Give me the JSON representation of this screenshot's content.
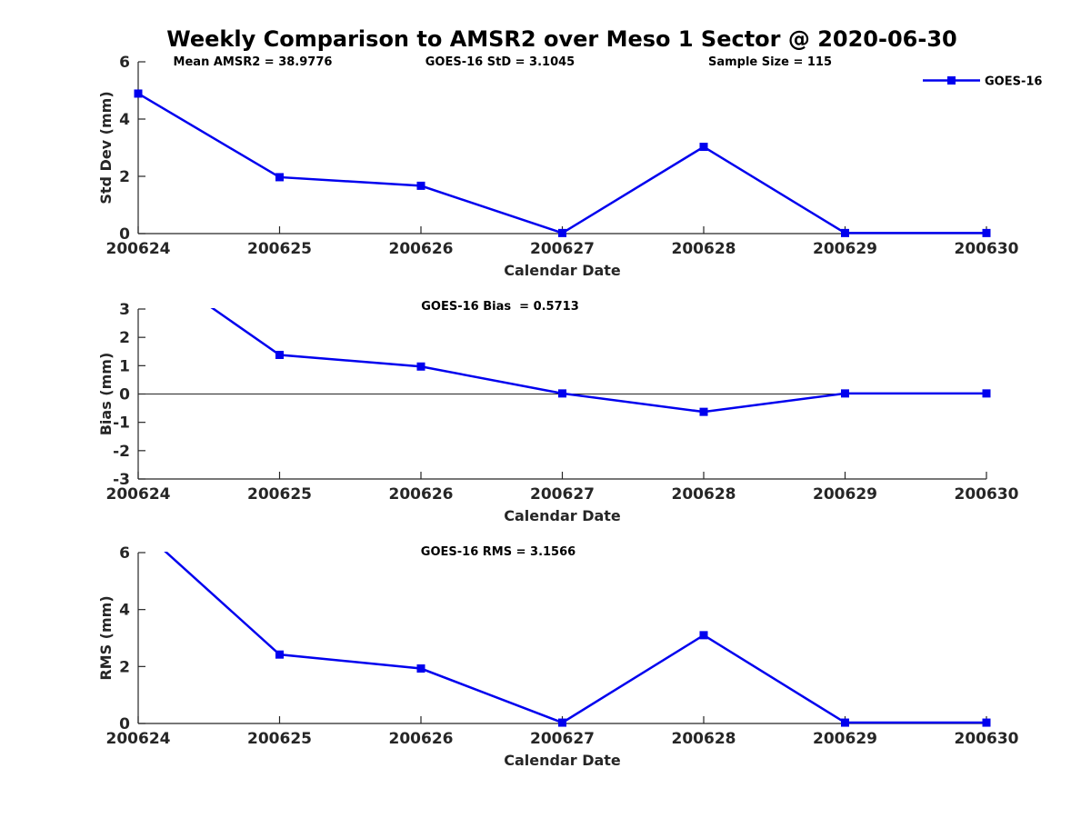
{
  "title": "Weekly Comparison to AMSR2 over Meso 1 Sector @ 2020-06-30",
  "legend": {
    "label": "GOES-16"
  },
  "colors": {
    "line": "#0000EE",
    "axis": "#262626",
    "text": "#000000",
    "background": "#FFFFFF"
  },
  "chart_data": [
    {
      "type": "line",
      "ylabel": "Std Dev (mm)",
      "xlabel": "Calendar Date",
      "categories": [
        "200624",
        "200625",
        "200626",
        "200627",
        "200628",
        "200629",
        "200630"
      ],
      "series": [
        {
          "name": "GOES-16",
          "values": [
            4.89,
            1.97,
            1.67,
            0.02,
            3.03,
            0.02,
            0.02
          ]
        }
      ],
      "ylim": [
        0,
        6
      ],
      "yticks": [
        0,
        2,
        4,
        6
      ],
      "zero_line": false,
      "grid": false,
      "legend_position": "top-right",
      "annotations": [
        "Mean AMSR2 = 38.9776",
        "GOES-16 StD = 3.1045",
        "Sample Size = 115"
      ]
    },
    {
      "type": "line",
      "ylabel": "Bias (mm)",
      "xlabel": "Calendar Date",
      "categories": [
        "200624",
        "200625",
        "200626",
        "200627",
        "200628",
        "200629",
        "200630"
      ],
      "series": [
        {
          "name": "GOES-16",
          "values": [
            4.86,
            1.38,
            0.97,
            0.02,
            -0.63,
            0.02,
            0.02
          ]
        }
      ],
      "ylim": [
        -3,
        3
      ],
      "yticks": [
        -3,
        -2,
        -1,
        0,
        1,
        2,
        3
      ],
      "zero_line": true,
      "grid": false,
      "annotations": [
        "GOES-16 Bias  = 0.5713"
      ]
    },
    {
      "type": "line",
      "ylabel": "RMS (mm)",
      "xlabel": "Calendar Date",
      "categories": [
        "200624",
        "200625",
        "200626",
        "200627",
        "200628",
        "200629",
        "200630"
      ],
      "series": [
        {
          "name": "GOES-16",
          "values": [
            6.9,
            2.42,
            1.93,
            0.03,
            3.1,
            0.03,
            0.03
          ]
        }
      ],
      "ylim": [
        0,
        6
      ],
      "yticks": [
        0,
        2,
        4,
        6
      ],
      "zero_line": false,
      "grid": false,
      "annotations": [
        "GOES-16 RMS = 3.1566"
      ]
    }
  ]
}
